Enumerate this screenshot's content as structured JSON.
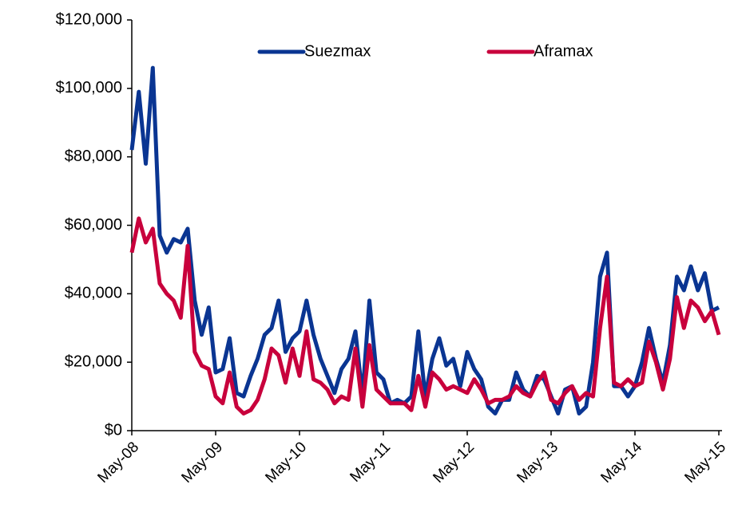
{
  "chart_data": {
    "type": "line",
    "categories": [
      "May-08",
      null,
      null,
      null,
      null,
      null,
      null,
      null,
      null,
      null,
      null,
      null,
      "May-09",
      null,
      null,
      null,
      null,
      null,
      null,
      null,
      null,
      null,
      null,
      null,
      "May-10",
      null,
      null,
      null,
      null,
      null,
      null,
      null,
      null,
      null,
      null,
      null,
      "May-11",
      null,
      null,
      null,
      null,
      null,
      null,
      null,
      null,
      null,
      null,
      null,
      "May-12",
      null,
      null,
      null,
      null,
      null,
      null,
      null,
      null,
      null,
      null,
      null,
      "May-13",
      null,
      null,
      null,
      null,
      null,
      null,
      null,
      null,
      null,
      null,
      null,
      "May-14",
      null,
      null,
      null,
      null,
      null,
      null,
      null,
      null,
      null,
      null,
      null,
      "May-15"
    ],
    "series": [
      {
        "name": "Suezmax",
        "color": "#0a3592",
        "values": [
          82000,
          99000,
          78000,
          106000,
          57000,
          52000,
          56000,
          55000,
          59000,
          38000,
          28000,
          36000,
          17000,
          18000,
          27000,
          11000,
          10000,
          16000,
          21000,
          28000,
          30000,
          38000,
          23000,
          27000,
          29000,
          38000,
          28000,
          21000,
          16000,
          11000,
          18000,
          21000,
          29000,
          10000,
          38000,
          17000,
          15000,
          8000,
          9000,
          8000,
          10000,
          29000,
          10000,
          21000,
          27000,
          19000,
          21000,
          13000,
          23000,
          18000,
          15000,
          7000,
          5000,
          9000,
          9000,
          17000,
          12000,
          10000,
          16000,
          15000,
          10000,
          5000,
          12000,
          13000,
          5000,
          7000,
          20000,
          45000,
          52000,
          13000,
          13000,
          10000,
          13000,
          20000,
          30000,
          21000,
          14000,
          25000,
          45000,
          41000,
          48000,
          41000,
          46000,
          35000,
          36000
        ]
      },
      {
        "name": "Aframax",
        "color": "#c8003c",
        "values": [
          52000,
          62000,
          55000,
          59000,
          43000,
          40000,
          38000,
          33000,
          54000,
          23000,
          19000,
          18000,
          10000,
          8000,
          17000,
          7000,
          5000,
          6000,
          9000,
          15000,
          24000,
          22000,
          14000,
          24000,
          16000,
          29000,
          15000,
          14000,
          12000,
          8000,
          10000,
          9000,
          24000,
          7000,
          25000,
          12000,
          10000,
          8000,
          8000,
          8000,
          6000,
          16000,
          7000,
          17000,
          15000,
          12000,
          13000,
          12000,
          11000,
          15000,
          12000,
          8000,
          9000,
          9000,
          10000,
          13000,
          11000,
          10000,
          14000,
          17000,
          9000,
          8000,
          11000,
          13000,
          9000,
          11000,
          10000,
          30000,
          45000,
          14000,
          13000,
          15000,
          13000,
          14000,
          26000,
          20000,
          12000,
          21000,
          39000,
          30000,
          38000,
          36000,
          32000,
          35000,
          28000
        ]
      }
    ],
    "ylim": [
      0,
      120000
    ],
    "yticks": [
      {
        "value": 0,
        "label": "$0"
      },
      {
        "value": 20000,
        "label": "$20,000"
      },
      {
        "value": 40000,
        "label": "$40,000"
      },
      {
        "value": 60000,
        "label": "$60,000"
      },
      {
        "value": 80000,
        "label": "$80,000"
      },
      {
        "value": 100000,
        "label": "$100,000"
      },
      {
        "value": 120000,
        "label": "$120,000"
      }
    ],
    "legend": "top"
  }
}
